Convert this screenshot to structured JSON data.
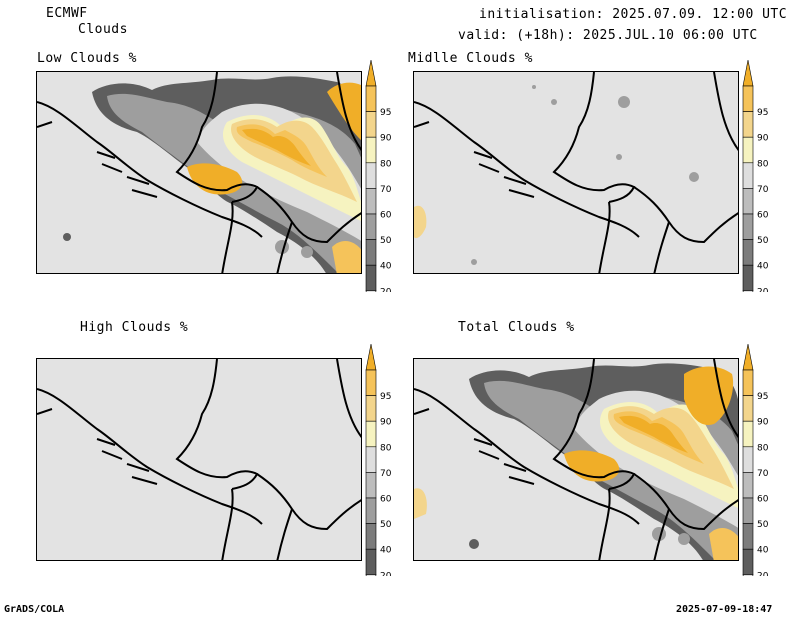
{
  "header": {
    "model": "ECMWF",
    "product": "Clouds",
    "initialisation": "initialisation: 2025.07.09. 12:00 UTC",
    "valid": "valid: (+18h): 2025.JUL.10 06:00 UTC"
  },
  "panels": [
    {
      "id": "low",
      "title": "Low Clouds %"
    },
    {
      "id": "middle",
      "title": "Midlle Clouds %"
    },
    {
      "id": "high",
      "title": "High Clouds %"
    },
    {
      "id": "total",
      "title": "Total Clouds %"
    }
  ],
  "colorbar": {
    "labels": [
      "95",
      "90",
      "80",
      "70",
      "60",
      "50",
      "40",
      "20"
    ],
    "colors": [
      "#f0ae28",
      "#f5c35a",
      "#f3d58c",
      "#f6f3c0",
      "#dedede",
      "#bdbdbd",
      "#9e9e9e",
      "#7c7c7c",
      "#5e5e5e",
      "#ffffff"
    ]
  },
  "footer": {
    "software": "GrADS/COLA",
    "timestamp": "2025-07-09-18:47"
  }
}
